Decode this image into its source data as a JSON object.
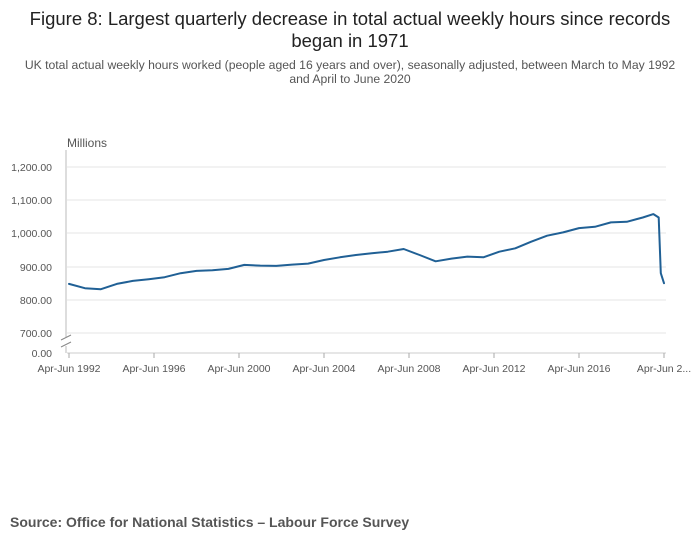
{
  "title": "Figure 8: Largest quarterly decrease in total actual weekly hours since records began in 1971",
  "subtitle": "UK total actual weekly hours worked (people aged 16 years and over), seasonally adjusted, between March to May 1992 and April to June 2020",
  "source": "Source: Office for National Statistics – Labour Force Survey",
  "colors": {
    "line": "#206095",
    "grid": "#e6e6e6",
    "axis": "#cccccc",
    "tick_text": "#555555",
    "text": "#222222"
  },
  "chart_data": {
    "type": "line",
    "title": "Figure 8: Largest quarterly decrease in total actual weekly hours since records began in 1971",
    "ylabel": "Millions",
    "xlabel": "",
    "y_ticks": [
      "0.00",
      "700.00",
      "800.00",
      "900.00",
      "1,000.00",
      "1,100.00",
      "1,200.00"
    ],
    "x_ticks": [
      "Apr-Jun 1992",
      "Apr-Jun 1996",
      "Apr-Jun 2000",
      "Apr-Jun 2004",
      "Apr-Jun 2008",
      "Apr-Jun 2012",
      "Apr-Jun 2016",
      "Apr-Jun 2..."
    ],
    "ylim": [
      700,
      1250
    ],
    "y_axis_break": true,
    "grid": "horizontal",
    "legend": "none",
    "x": [
      1992.25,
      1993.0,
      1993.75,
      1994.5,
      1995.25,
      1996.0,
      1996.75,
      1997.5,
      1998.25,
      1999.0,
      1999.75,
      2000.5,
      2001.25,
      2002.0,
      2002.75,
      2003.5,
      2004.25,
      2005.0,
      2005.75,
      2006.5,
      2007.25,
      2008.0,
      2008.75,
      2009.5,
      2010.25,
      2011.0,
      2011.75,
      2012.5,
      2013.25,
      2014.0,
      2014.75,
      2015.5,
      2016.25,
      2017.0,
      2017.75,
      2018.5,
      2019.25,
      2019.75,
      2020.0,
      2020.1,
      2020.25
    ],
    "values": [
      848,
      835,
      832,
      848,
      857,
      862,
      868,
      880,
      887,
      889,
      893,
      905,
      903,
      902,
      906,
      909,
      920,
      928,
      935,
      940,
      945,
      953,
      935,
      916,
      924,
      930,
      928,
      945,
      955,
      975,
      993,
      1003,
      1016,
      1020,
      1033,
      1035,
      1048,
      1058,
      1048,
      880,
      850
    ]
  }
}
